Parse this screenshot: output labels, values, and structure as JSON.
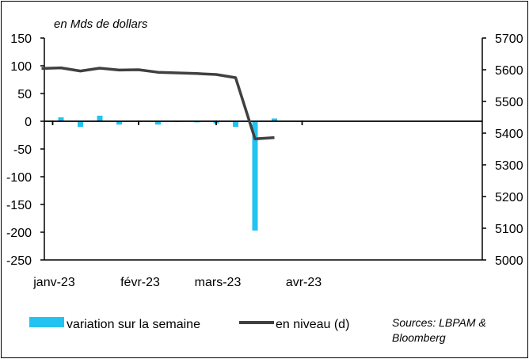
{
  "chart_data": {
    "type": "bar+line",
    "unit_label": "en Mds de dollars",
    "x_ticks": [
      "janv-23",
      "févr-23",
      "mars-23",
      "avr-23"
    ],
    "y_left": {
      "min": -250,
      "max": 150,
      "ticks": [
        "150",
        "100",
        "50",
        "0",
        "-50",
        "-100",
        "-150",
        "-200",
        "-250"
      ]
    },
    "y_right": {
      "min": 5000,
      "max": 5700,
      "ticks": [
        "5700",
        "5600",
        "5500",
        "5400",
        "5300",
        "5200",
        "5100",
        "5000"
      ]
    },
    "series": [
      {
        "name": "variation sur la semaine",
        "type": "bar",
        "axis": "left",
        "color": "#22c3f0",
        "points": [
          {
            "x": "2023-01-04",
            "y": 7
          },
          {
            "x": "2023-01-11",
            "y": -10
          },
          {
            "x": "2023-01-18",
            "y": 10
          },
          {
            "x": "2023-01-25",
            "y": -6
          },
          {
            "x": "2023-02-01",
            "y": 1
          },
          {
            "x": "2023-02-08",
            "y": -6
          },
          {
            "x": "2023-02-15",
            "y": -1
          },
          {
            "x": "2023-02-22",
            "y": -2
          },
          {
            "x": "2023-03-01",
            "y": -4
          },
          {
            "x": "2023-03-08",
            "y": -10
          },
          {
            "x": "2023-03-15",
            "y": -197
          },
          {
            "x": "2023-03-22",
            "y": 5
          }
        ]
      },
      {
        "name": "en niveau (d)",
        "type": "line",
        "axis": "right",
        "color": "#404040",
        "points": [
          {
            "x": "2022-12-28",
            "y": 5604
          },
          {
            "x": "2023-01-04",
            "y": 5606
          },
          {
            "x": "2023-01-11",
            "y": 5596
          },
          {
            "x": "2023-01-18",
            "y": 5605
          },
          {
            "x": "2023-01-25",
            "y": 5599
          },
          {
            "x": "2023-02-01",
            "y": 5600
          },
          {
            "x": "2023-02-08",
            "y": 5592
          },
          {
            "x": "2023-02-15",
            "y": 5590
          },
          {
            "x": "2023-02-22",
            "y": 5588
          },
          {
            "x": "2023-03-01",
            "y": 5585
          },
          {
            "x": "2023-03-08",
            "y": 5575
          },
          {
            "x": "2023-03-15",
            "y": 5382
          },
          {
            "x": "2023-03-22",
            "y": 5386
          }
        ]
      }
    ],
    "legend": [
      "variation sur la semaine",
      "en niveau (d)"
    ],
    "legend_position": "bottom",
    "source": "Sources: LBPAM & Bloomberg",
    "grid": false
  }
}
